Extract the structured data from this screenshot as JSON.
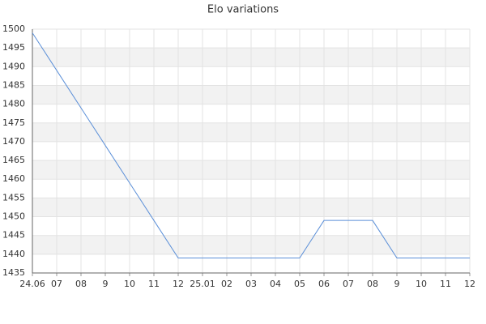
{
  "chart_data": {
    "type": "line",
    "title": "Elo variations",
    "categories": [
      "24.06",
      "07",
      "08",
      "9",
      "10",
      "11",
      "12",
      "25.01",
      "02",
      "03",
      "04",
      "05",
      "06",
      "07",
      "08",
      "9",
      "10",
      "11",
      "12"
    ],
    "values": [
      1499,
      1489,
      1479,
      1469,
      1459,
      1449,
      1439,
      1439,
      1439,
      1439,
      1439,
      1439,
      1449,
      1449,
      1449,
      1439,
      1439,
      1439,
      1439
    ],
    "color": "#5b8fd8",
    "ylim": [
      1435,
      1500
    ],
    "yticks": [
      1435,
      1440,
      1445,
      1450,
      1455,
      1460,
      1465,
      1470,
      1475,
      1480,
      1485,
      1490,
      1495,
      1500
    ],
    "grid": true
  }
}
